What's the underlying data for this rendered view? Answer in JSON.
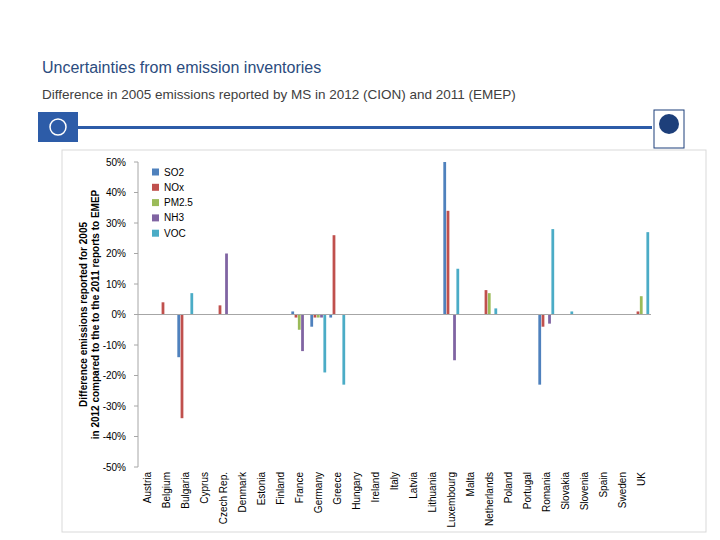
{
  "chart_data": {
    "type": "bar",
    "title": "Uncertainties from emission inventories",
    "subtitle": "Difference in 2005 emissions reported by MS in 2012 (CION) and 2011 (EMEP)",
    "ylabel": [
      "Difference emissions reported for 2005",
      "in 2012 compared to the to the 2011 reports to EMEP"
    ],
    "categories": [
      "Austria",
      "Belgium",
      "Bulgaria",
      "Cyprus",
      "Czech Rep.",
      "Denmark",
      "Estonia",
      "Finland",
      "France",
      "Germany",
      "Greece",
      "Hungary",
      "Ireland",
      "Italy",
      "Latvia",
      "Lithuania",
      "Luxembourg",
      "Malta",
      "Netherlands",
      "Poland",
      "Portugal",
      "Romania",
      "Slovakia",
      "Slovenia",
      "Spain",
      "Sweden",
      "UK"
    ],
    "series": [
      {
        "name": "SO2",
        "color": "#4f81bd",
        "values": [
          0,
          0,
          -14,
          0,
          0,
          0,
          0,
          0,
          1,
          -4,
          -1,
          0,
          0,
          0,
          0,
          0,
          50,
          0,
          0,
          0,
          0,
          -23,
          0,
          0,
          0,
          0,
          0
        ]
      },
      {
        "name": "NOx",
        "color": "#c0504d",
        "values": [
          0,
          4,
          -34,
          0,
          3,
          0,
          0,
          0,
          -1,
          -1,
          26,
          0,
          0,
          0,
          0,
          0,
          34,
          0,
          8,
          0,
          0,
          -4,
          0,
          0,
          0,
          0,
          1
        ]
      },
      {
        "name": "PM2.5",
        "color": "#9bbb59",
        "values": [
          0,
          0,
          0,
          0,
          0,
          0,
          0,
          0,
          -5,
          -1,
          0,
          0,
          0,
          0,
          0,
          0,
          0,
          0,
          7,
          0,
          0,
          0,
          0,
          0,
          0,
          0,
          6
        ]
      },
      {
        "name": "NH3",
        "color": "#8064a2",
        "values": [
          0,
          0,
          0,
          0,
          20,
          0,
          0,
          0,
          -12,
          -1,
          0,
          0,
          0,
          0,
          0,
          0,
          -15,
          0,
          0,
          0,
          0,
          -3,
          0,
          0,
          0,
          0,
          0
        ]
      },
      {
        "name": "VOC",
        "color": "#4bacc6",
        "values": [
          0,
          0,
          7,
          0,
          0,
          0,
          0,
          0,
          0,
          -19,
          -23,
          0,
          0,
          0,
          0,
          0,
          15,
          0,
          2,
          0,
          0,
          28,
          1,
          0,
          0,
          0,
          27
        ]
      }
    ],
    "ylim": [
      -50,
      50
    ],
    "yticks": [
      {
        "value": 50,
        "label": "50%"
      },
      {
        "value": 40,
        "label": "40%"
      },
      {
        "value": 30,
        "label": "30%"
      },
      {
        "value": 20,
        "label": "20%"
      },
      {
        "value": 10,
        "label": "10%"
      },
      {
        "value": 0,
        "label": "0%"
      },
      {
        "value": -10,
        "label": "-10%"
      },
      {
        "value": -20,
        "label": "-20%"
      },
      {
        "value": -30,
        "label": "-30%"
      },
      {
        "value": -40,
        "label": "-40%"
      },
      {
        "value": -50,
        "label": "-50%"
      }
    ],
    "grid": false,
    "legend": "top-left"
  }
}
